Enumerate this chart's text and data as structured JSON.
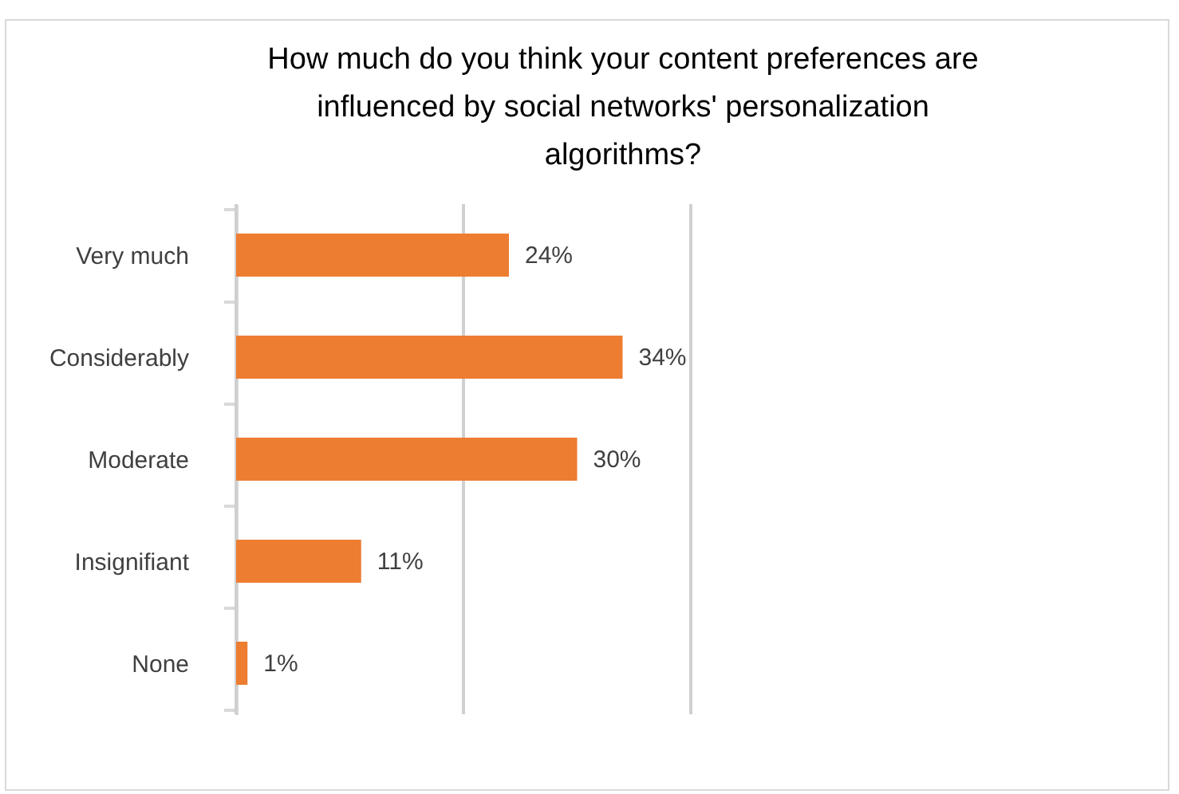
{
  "chart_data": {
    "type": "bar",
    "orientation": "horizontal",
    "title": "How much do you think your content preferences  are influenced by social networks' personalization algorithms?",
    "categories": [
      "Very much",
      "Considerably",
      "Moderate",
      "Insignifiant",
      "None"
    ],
    "values": [
      24,
      34,
      30,
      11,
      1
    ],
    "value_labels": [
      "24%",
      "34%",
      "30%",
      "11%",
      "1%"
    ],
    "color": "#ed7d31",
    "xlim": [
      0,
      40
    ],
    "xticks": [
      {
        "value": 0,
        "label": null
      },
      {
        "value": 20,
        "label": null
      },
      {
        "value": 40,
        "label": null
      }
    ],
    "grid": "x",
    "tick_labels": "y"
  }
}
